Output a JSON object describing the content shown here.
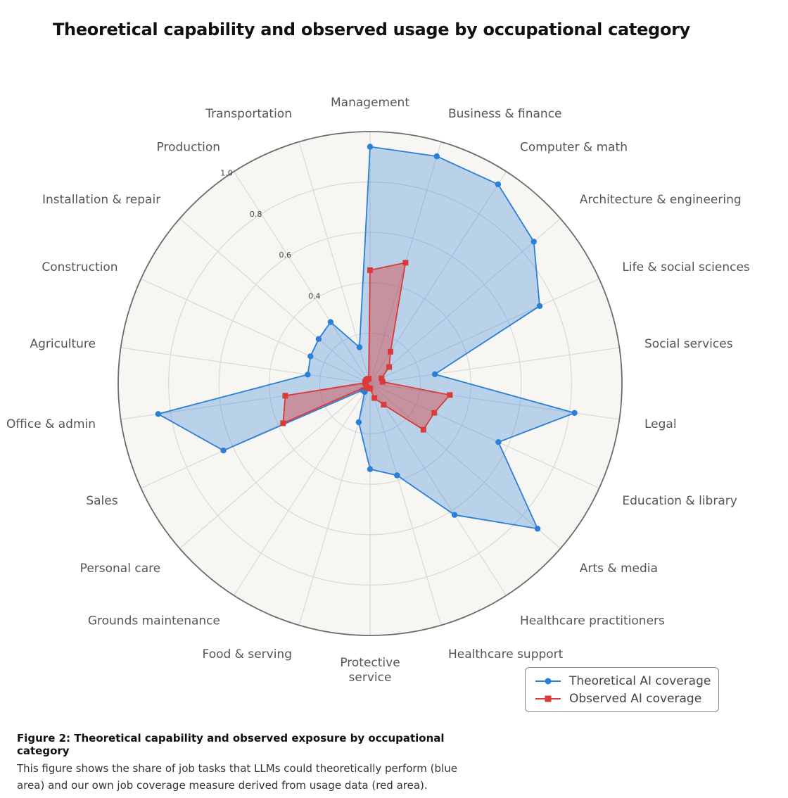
{
  "chart_data": {
    "type": "radar",
    "title": "Theoretical capability and observed usage by occupational category",
    "categories": [
      "Management",
      "Business & finance",
      "Computer & math",
      "Architecture & engineering",
      "Life & social sciences",
      "Social services",
      "Legal",
      "Education & library",
      "Arts & media",
      "Healthcare practitioners",
      "Healthcare support",
      "Protective service",
      "Food & serving",
      "Grounds maintenance",
      "Personal care",
      "Sales",
      "Office & admin",
      "Agriculture",
      "Construction",
      "Installation & repair",
      "Production",
      "Transportation"
    ],
    "rlim": [
      0,
      1.0
    ],
    "r_ticks": [
      0.4,
      0.6,
      0.8,
      1.0
    ],
    "r_tick_labels": [
      "0.4",
      "0.6",
      "0.8",
      "1.0"
    ],
    "series": [
      {
        "name": "Theoretical AI coverage",
        "color": "#2a7fd6",
        "marker": "circle",
        "values": [
          0.94,
          0.94,
          0.94,
          0.86,
          0.74,
          0.26,
          0.82,
          0.56,
          0.88,
          0.62,
          0.38,
          0.34,
          0.16,
          0.04,
          0.04,
          0.64,
          0.85,
          0.25,
          0.26,
          0.27,
          0.29,
          0.15
        ]
      },
      {
        "name": "Observed AI coverage",
        "color": "#d93a3a",
        "marker": "square",
        "values": [
          0.45,
          0.5,
          0.15,
          0.1,
          0.05,
          0.05,
          0.32,
          0.28,
          0.28,
          0.1,
          0.06,
          0.02,
          0.02,
          0.02,
          0.02,
          0.38,
          0.34,
          0.02,
          0.02,
          0.02,
          0.02,
          0.02
        ]
      }
    ],
    "grid": true,
    "legend_position": "bottom-right"
  },
  "colors": {
    "plot_background": "#f7f6f2",
    "grid": "#d8d8d8",
    "outer_ring": "#6b6b6b",
    "theoretical": "#2a7fd6",
    "observed": "#d93a3a"
  },
  "caption": {
    "title": "Figure 2: Theoretical capability and observed exposure by occupational category",
    "body": "This figure shows the share of job tasks that LLMs could theoretically perform (blue area) and our own job coverage measure derived from usage data (red area)."
  }
}
